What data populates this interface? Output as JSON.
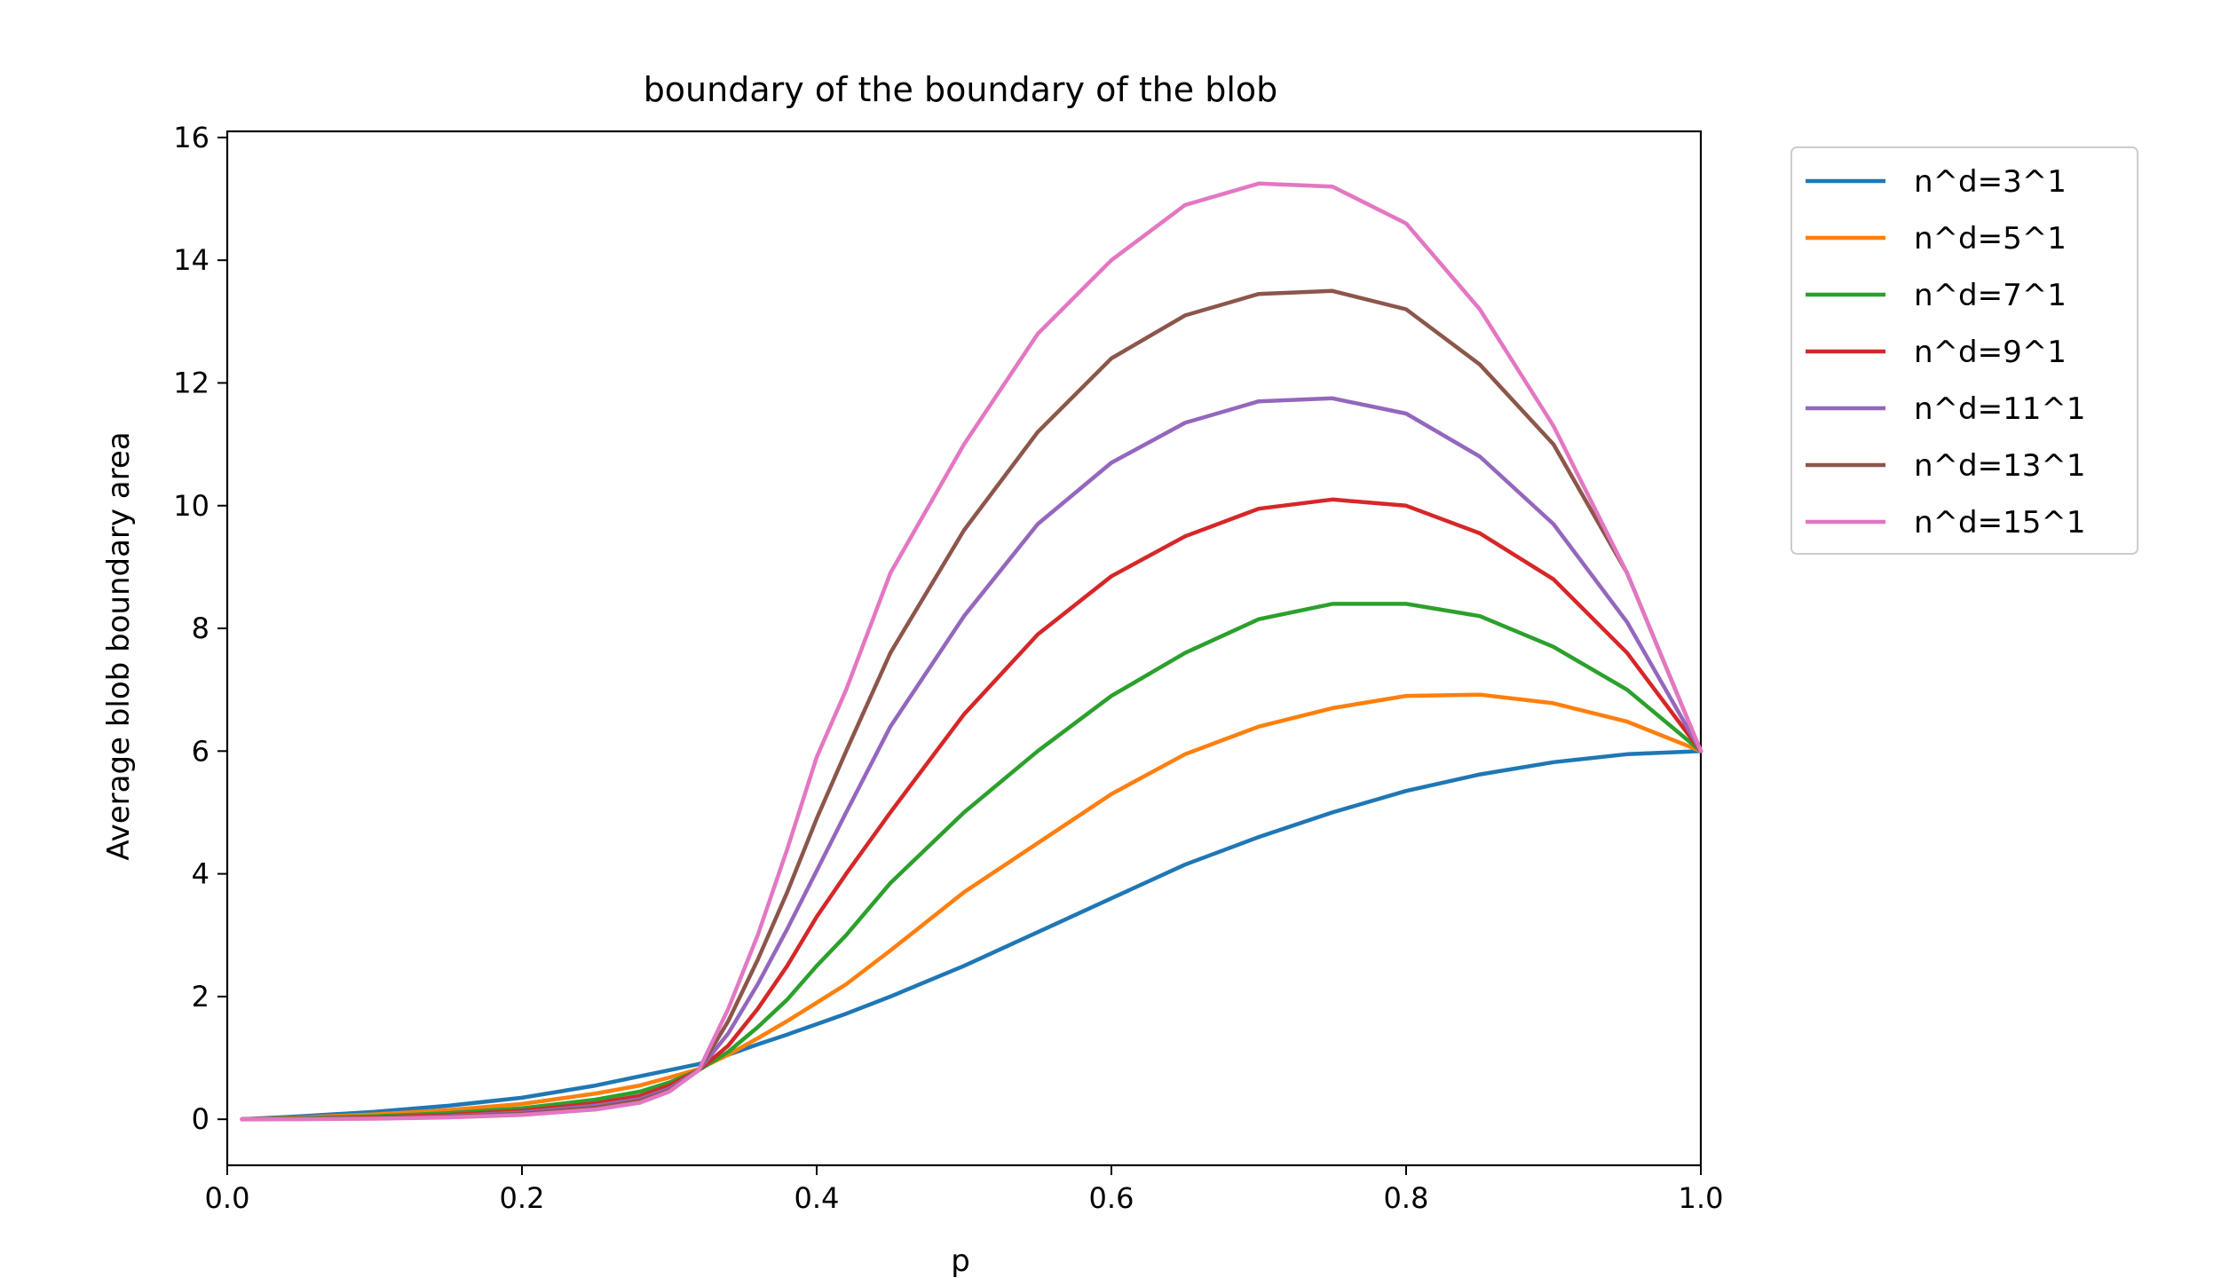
{
  "chart_data": {
    "type": "line",
    "title": "boundary of the boundary of the blob",
    "xlabel": "p",
    "ylabel": "Average blob boundary area",
    "xlim": [
      0.0,
      1.0
    ],
    "ylim": [
      -0.75,
      16.1
    ],
    "x_ticks": [
      0.0,
      0.2,
      0.4,
      0.6,
      0.8,
      1.0
    ],
    "x_tick_labels": [
      "0.0",
      "0.2",
      "0.4",
      "0.6",
      "0.8",
      "1.0"
    ],
    "y_ticks": [
      0,
      2,
      4,
      6,
      8,
      10,
      12,
      14,
      16
    ],
    "y_tick_labels": [
      "0",
      "2",
      "4",
      "6",
      "8",
      "10",
      "12",
      "14",
      "16"
    ],
    "grid": false,
    "legend_position": "outside-top-right",
    "x": [
      0.01,
      0.05,
      0.1,
      0.15,
      0.2,
      0.25,
      0.28,
      0.3,
      0.32,
      0.34,
      0.36,
      0.38,
      0.4,
      0.42,
      0.45,
      0.5,
      0.55,
      0.6,
      0.65,
      0.7,
      0.75,
      0.8,
      0.85,
      0.9,
      0.95,
      1.0
    ],
    "series": [
      {
        "name": "n^d=3^1",
        "color": "#1f77b4",
        "values": [
          0.0,
          0.05,
          0.12,
          0.22,
          0.35,
          0.55,
          0.7,
          0.8,
          0.9,
          1.05,
          1.22,
          1.38,
          1.55,
          1.72,
          2.0,
          2.5,
          3.05,
          3.6,
          4.15,
          4.6,
          5.0,
          5.35,
          5.62,
          5.82,
          5.95,
          6.0
        ]
      },
      {
        "name": "n^d=5^1",
        "color": "#ff7f0e",
        "values": [
          0.0,
          0.03,
          0.08,
          0.15,
          0.25,
          0.42,
          0.55,
          0.68,
          0.82,
          1.05,
          1.32,
          1.6,
          1.9,
          2.2,
          2.75,
          3.7,
          4.5,
          5.3,
          5.95,
          6.4,
          6.7,
          6.9,
          6.92,
          6.78,
          6.48,
          6.0
        ]
      },
      {
        "name": "n^d=7^1",
        "color": "#2ca02c",
        "values": [
          0.0,
          0.02,
          0.05,
          0.1,
          0.18,
          0.32,
          0.45,
          0.6,
          0.8,
          1.1,
          1.5,
          1.95,
          2.5,
          3.0,
          3.85,
          5.0,
          6.0,
          6.9,
          7.6,
          8.15,
          8.4,
          8.4,
          8.2,
          7.7,
          7.0,
          6.0
        ]
      },
      {
        "name": "n^d=9^1",
        "color": "#d62728",
        "values": [
          0.0,
          0.01,
          0.03,
          0.07,
          0.14,
          0.26,
          0.38,
          0.55,
          0.8,
          1.2,
          1.8,
          2.5,
          3.3,
          4.0,
          5.0,
          6.6,
          7.9,
          8.85,
          9.5,
          9.95,
          10.1,
          10.0,
          9.55,
          8.8,
          7.6,
          6.0
        ]
      },
      {
        "name": "n^d=11^1",
        "color": "#9467bd",
        "values": [
          0.0,
          0.01,
          0.02,
          0.05,
          0.11,
          0.22,
          0.33,
          0.5,
          0.8,
          1.4,
          2.2,
          3.1,
          4.05,
          5.0,
          6.4,
          8.2,
          9.7,
          10.7,
          11.35,
          11.7,
          11.75,
          11.5,
          10.8,
          9.7,
          8.1,
          6.0
        ]
      },
      {
        "name": "n^d=13^1",
        "color": "#8c564b",
        "values": [
          0.0,
          0.01,
          0.02,
          0.04,
          0.09,
          0.19,
          0.3,
          0.47,
          0.8,
          1.6,
          2.6,
          3.7,
          4.9,
          6.0,
          7.6,
          9.6,
          11.2,
          12.4,
          13.1,
          13.45,
          13.5,
          13.2,
          12.3,
          11.0,
          8.9,
          6.0
        ]
      },
      {
        "name": "n^d=15^1",
        "color": "#e377c2",
        "values": [
          0.0,
          0.0,
          0.01,
          0.03,
          0.07,
          0.16,
          0.27,
          0.45,
          0.8,
          1.8,
          3.0,
          4.4,
          5.9,
          7.0,
          8.9,
          11.0,
          12.8,
          14.0,
          14.9,
          15.25,
          15.2,
          14.6,
          13.2,
          11.3,
          8.9,
          6.0
        ]
      }
    ]
  }
}
